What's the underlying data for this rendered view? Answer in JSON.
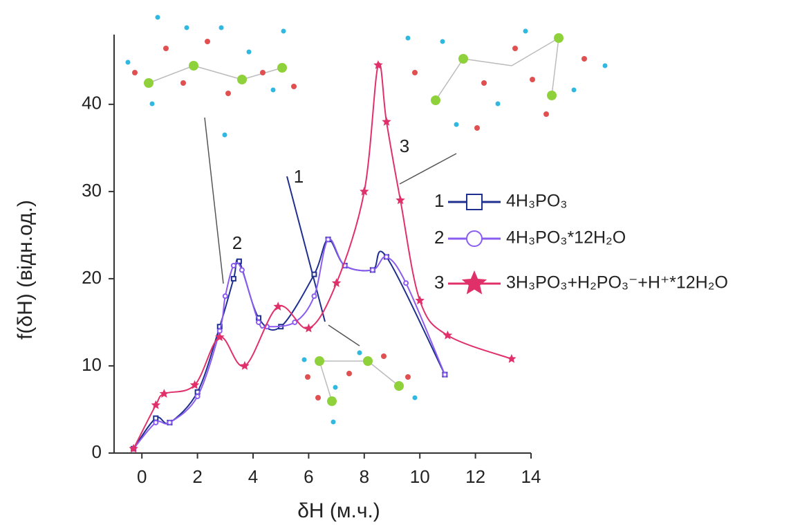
{
  "chart_data": {
    "type": "line",
    "xlabel": "δH (м.ч.)",
    "ylabel": "f(δH) (відн.од.)",
    "xlim": [
      -1,
      14
    ],
    "ylim": [
      0,
      48
    ],
    "xticks": [
      0,
      2,
      4,
      6,
      8,
      10,
      12,
      14
    ],
    "yticks": [
      0,
      10,
      20,
      30,
      40
    ],
    "series": [
      {
        "id": "1",
        "name": "4H₃PO₃",
        "color": "#1f2f8f",
        "marker": "square",
        "x": [
          -0.3,
          0.5,
          1,
          2,
          2.8,
          3.3,
          3.5,
          4.2,
          5,
          6.2,
          6.7,
          7.3,
          8.3,
          8.8,
          10.9
        ],
        "values": [
          0.5,
          4,
          3.5,
          7,
          14.5,
          20,
          22,
          15.5,
          14.5,
          20.5,
          24.5,
          21.5,
          21,
          22.5,
          9
        ]
      },
      {
        "id": "2",
        "name": "4H₃PO₃*12H₂O",
        "color": "#8a5cf0",
        "marker": "circle",
        "x": [
          -0.3,
          0.5,
          1,
          2,
          2.8,
          3,
          3.3,
          3.6,
          4.2,
          4.5,
          5.5,
          6.2,
          6.7,
          7.3,
          8.3,
          8.8,
          9.5,
          10.9
        ],
        "values": [
          0.5,
          3.5,
          3.5,
          6.5,
          14,
          18,
          21.5,
          21,
          15,
          14.5,
          15,
          18,
          24.5,
          21.5,
          21,
          22.5,
          19.5,
          9
        ]
      },
      {
        "id": "3",
        "name": "3H₃PO₃+H₂PO₃⁻+H⁺*12H₂O",
        "color": "#e0306a",
        "marker": "star",
        "x": [
          -0.3,
          0.5,
          0.8,
          1.9,
          2.8,
          3.7,
          4.9,
          6,
          7,
          8,
          8.5,
          8.8,
          9.3,
          10,
          11,
          13.3
        ],
        "values": [
          0.5,
          5.5,
          6.8,
          7.8,
          13.3,
          10,
          16.8,
          14.3,
          19.5,
          30,
          44.5,
          38,
          29,
          17.5,
          13.5,
          10.8
        ]
      }
    ],
    "annotations": [
      "1",
      "2",
      "3"
    ]
  }
}
